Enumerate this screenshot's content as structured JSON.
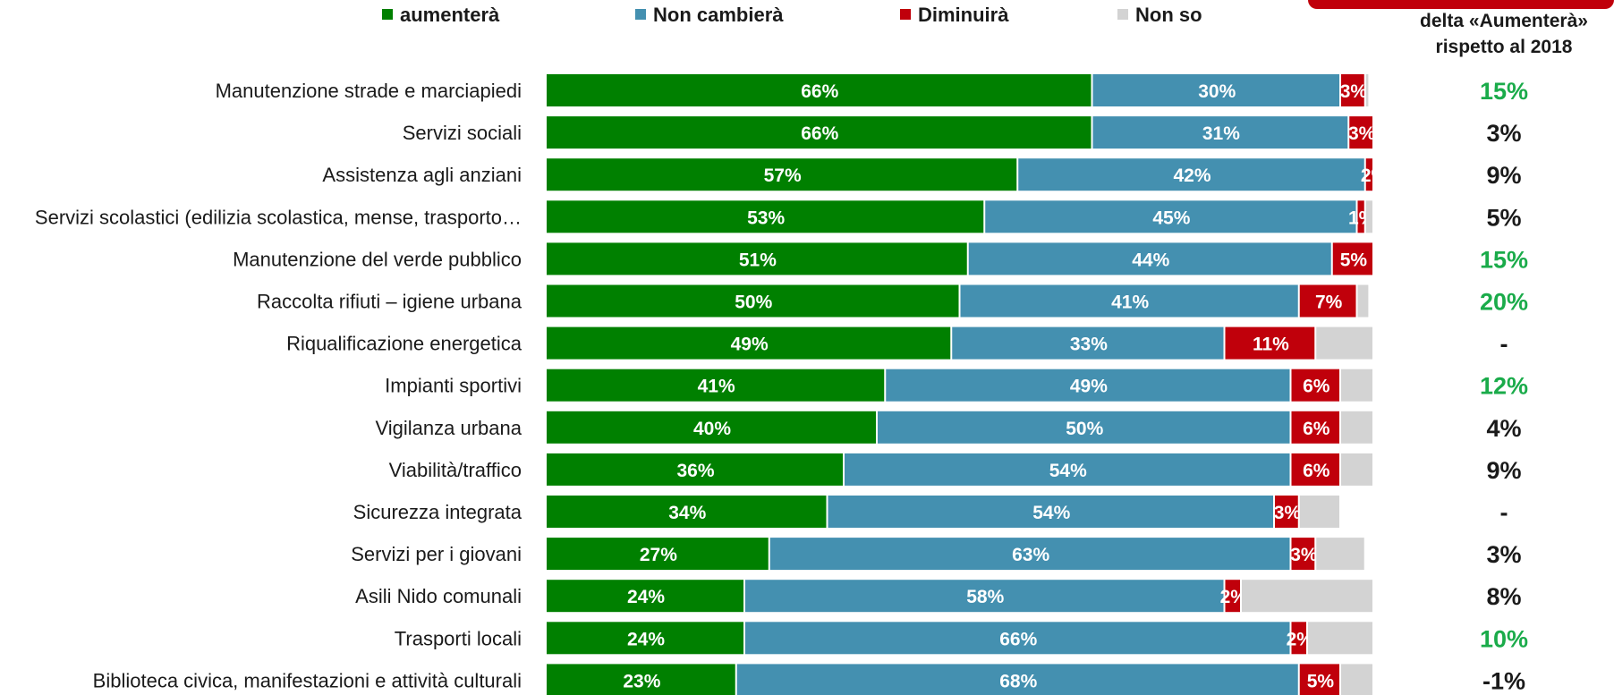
{
  "chart_data": {
    "type": "bar",
    "orientation": "horizontal",
    "stacked": true,
    "colors": {
      "aumentera": "#008000",
      "non_cambiera": "#4490b0",
      "diminuira": "#c0000b",
      "non_so": "#d3d3d3",
      "delta_highlight": "#1aab4a",
      "delta_default": "#1a1a1a",
      "badge": "#c0000b"
    },
    "legend": {
      "placement": "top",
      "entries": [
        "aumenterà",
        "Non cambierà",
        "Diminuirà",
        "Non so"
      ]
    },
    "delta_header": [
      "delta «Aumenterà»",
      "rispetto al 2018"
    ],
    "categories": [
      "Manutenzione strade e marciapiedi",
      "Servizi sociali",
      "Assistenza agli anziani",
      "Servizi scolastici (edilizia scolastica, mense, trasporto…",
      "Manutenzione del verde pubblico",
      "Raccolta rifiuti – igiene urbana",
      "Riqualificazione energetica",
      "Impianti sportivi",
      "Vigilanza urbana",
      "Viabilità/traffico",
      "Sicurezza integrata",
      "Servizi per i giovani",
      "Asili Nido comunali",
      "Trasporti locali",
      "Biblioteca civica, manifestazioni e attività culturali"
    ],
    "series": [
      {
        "name": "aumenterà",
        "values": [
          66,
          66,
          57,
          53,
          51,
          50,
          49,
          41,
          40,
          36,
          34,
          27,
          24,
          24,
          23
        ],
        "labels": [
          "66%",
          "66%",
          "57%",
          "53%",
          "51%",
          "50%",
          "49%",
          "41%",
          "40%",
          "36%",
          "34%",
          "27%",
          "24%",
          "24%",
          "23%"
        ]
      },
      {
        "name": "Non cambierà",
        "values": [
          30,
          31,
          42,
          45,
          44,
          41,
          33,
          49,
          50,
          54,
          54,
          63,
          58,
          66,
          68
        ],
        "labels": [
          "30%",
          "31%",
          "42%",
          "45%",
          "44%",
          "41%",
          "33%",
          "49%",
          "50%",
          "54%",
          "54%",
          "63%",
          "58%",
          "66%",
          "68%"
        ]
      },
      {
        "name": "Diminuirà",
        "values": [
          3,
          3,
          2,
          1,
          5,
          7,
          11,
          6,
          6,
          6,
          3,
          3,
          2,
          2,
          5
        ],
        "labels": [
          "3%",
          "3%",
          "2%",
          "1%",
          "5%",
          "7%",
          "11%",
          "6%",
          "6%",
          "6%",
          "3%",
          "3%",
          "2%",
          "2%",
          "5%"
        ]
      },
      {
        "name": "Non so",
        "values": [
          0.5,
          0.5,
          0.5,
          1,
          0.5,
          1.5,
          7,
          4,
          4,
          4,
          5,
          6,
          16,
          8,
          4
        ],
        "labels": [
          "",
          "",
          "",
          "",
          "",
          "",
          "",
          "",
          "",
          "",
          "",
          "",
          "",
          "",
          ""
        ]
      }
    ],
    "delta": {
      "values": [
        "15%",
        "3%",
        "9%",
        "5%",
        "15%",
        "20%",
        "-",
        "12%",
        "4%",
        "9%",
        "-",
        "3%",
        "8%",
        "10%",
        "-1%"
      ],
      "highlight": [
        true,
        false,
        false,
        false,
        true,
        true,
        false,
        true,
        false,
        false,
        false,
        false,
        false,
        true,
        false
      ]
    },
    "xlim": [
      0,
      100
    ],
    "grid": false
  }
}
